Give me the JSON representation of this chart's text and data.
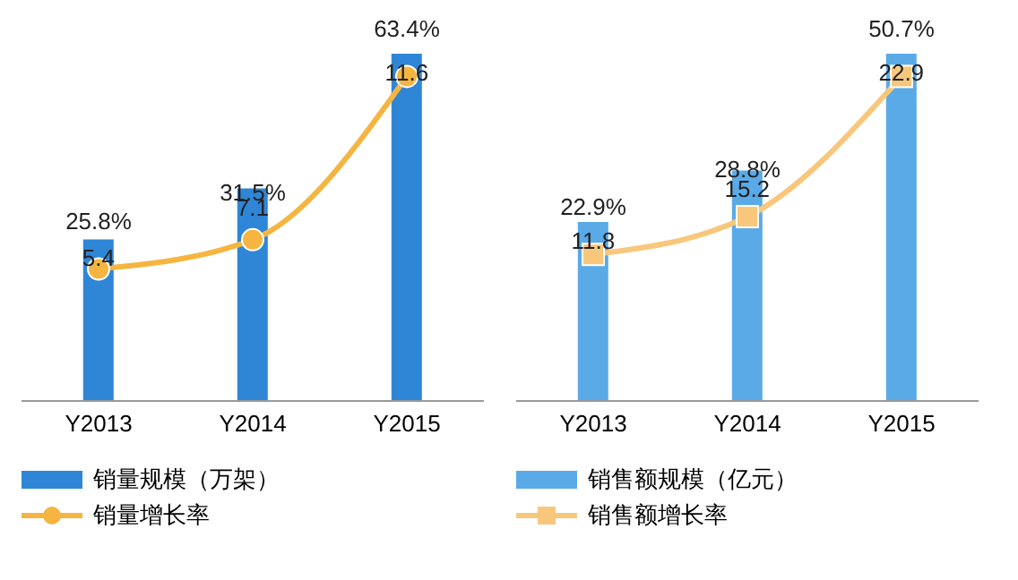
{
  "chart_data": [
    {
      "type": "bar",
      "categories": [
        "Y2013",
        "Y2014",
        "Y2015"
      ],
      "series": [
        {
          "name": "销量规模（万架）",
          "color": "#2f86d6",
          "values": [
            5.4,
            7.1,
            11.6
          ]
        },
        {
          "name": "销量增长率",
          "type": "line",
          "axis": "y2",
          "color": "#f5b540",
          "marker": "circle",
          "values": [
            25.8,
            31.5,
            63.4
          ],
          "value_labels": [
            "25.8%",
            "31.5%",
            "63.4%"
          ]
        }
      ],
      "data_labels": true,
      "legend": "bottom",
      "tick_labels": "x",
      "grid": false
    },
    {
      "type": "bar",
      "categories": [
        "Y2013",
        "Y2014",
        "Y2015"
      ],
      "series": [
        {
          "name": "销售额规模（亿元）",
          "color": "#5aaae8",
          "values": [
            11.8,
            15.2,
            22.9
          ]
        },
        {
          "name": "销售额增长率",
          "type": "line",
          "axis": "y2",
          "color": "#f8c77c",
          "marker": "square",
          "values": [
            22.9,
            28.8,
            50.7
          ],
          "value_labels": [
            "22.9%",
            "28.8%",
            "50.7%"
          ]
        }
      ],
      "data_labels": true,
      "legend": "bottom",
      "tick_labels": "x",
      "grid": false
    }
  ]
}
